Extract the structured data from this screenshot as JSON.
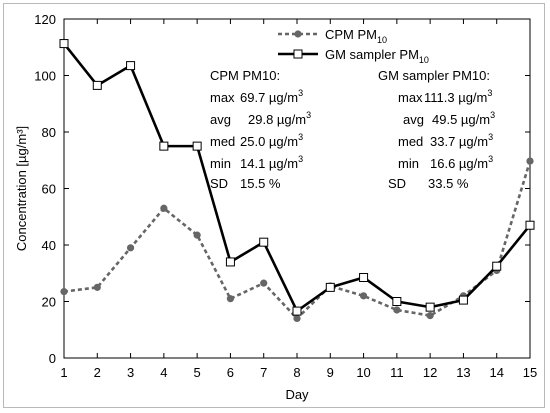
{
  "chart_data": {
    "type": "line",
    "xlabel": "Day",
    "ylabel": "Concentration [µg/m³]",
    "xlim": [
      1,
      15
    ],
    "ylim": [
      0,
      120
    ],
    "x": [
      1,
      2,
      3,
      4,
      5,
      6,
      7,
      8,
      9,
      10,
      11,
      12,
      13,
      14,
      15
    ],
    "x_ticks": [
      "1",
      "2",
      "3",
      "4",
      "5",
      "6",
      "7",
      "8",
      "9",
      "10",
      "11",
      "12",
      "13",
      "14",
      "15"
    ],
    "y_ticks": [
      "0",
      "20",
      "40",
      "60",
      "80",
      "100",
      "120"
    ],
    "y_tick_values": [
      0,
      20,
      40,
      60,
      80,
      100,
      120
    ],
    "series": [
      {
        "name": "CPM PM10",
        "legend_main": "CPM PM",
        "legend_sub": "10",
        "color": "#666666",
        "style": "dotted",
        "marker": "circle",
        "values": [
          23.5,
          25,
          39,
          53,
          43.5,
          21,
          26.5,
          14,
          25.5,
          22,
          17,
          15,
          22,
          31,
          69.7
        ]
      },
      {
        "name": "GM sampler PM10",
        "legend_main": "GM sampler PM",
        "legend_sub": "10",
        "color": "#000000",
        "style": "solid",
        "marker": "square",
        "values": [
          111.3,
          96.5,
          103.5,
          75,
          75,
          34,
          41,
          16.6,
          25,
          28.5,
          20,
          18,
          20.5,
          32.5,
          47
        ]
      }
    ],
    "legend_position": "top-center",
    "grid": false,
    "annotations": [
      {
        "title": "CPM PM10:",
        "rows": [
          {
            "key": "max",
            "value": "69.7",
            "unit": "µg/m",
            "sup": "3"
          },
          {
            "key": "avg",
            "value": "29.8",
            "unit": "µg/m",
            "sup": "3"
          },
          {
            "key": "med",
            "value": "25.0",
            "unit": "µg/m",
            "sup": "3"
          },
          {
            "key": "min",
            "value": "14.1",
            "unit": "µg/m",
            "sup": "3"
          },
          {
            "key": "SD",
            "value": "15.5",
            "unit": "%",
            "sup": ""
          }
        ]
      },
      {
        "title": "GM sampler PM10:",
        "rows": [
          {
            "key": "max",
            "value": "111.3",
            "unit": "µg/m",
            "sup": "3"
          },
          {
            "key": "avg",
            "value": "49.5",
            "unit": "µg/m",
            "sup": "3"
          },
          {
            "key": "med",
            "value": "33.7",
            "unit": "µg/m",
            "sup": "3"
          },
          {
            "key": "min",
            "value": "16.6",
            "unit": "µg/m",
            "sup": "3"
          },
          {
            "key": "SD",
            "value": "33.5",
            "unit": "%",
            "sup": ""
          }
        ]
      }
    ]
  }
}
